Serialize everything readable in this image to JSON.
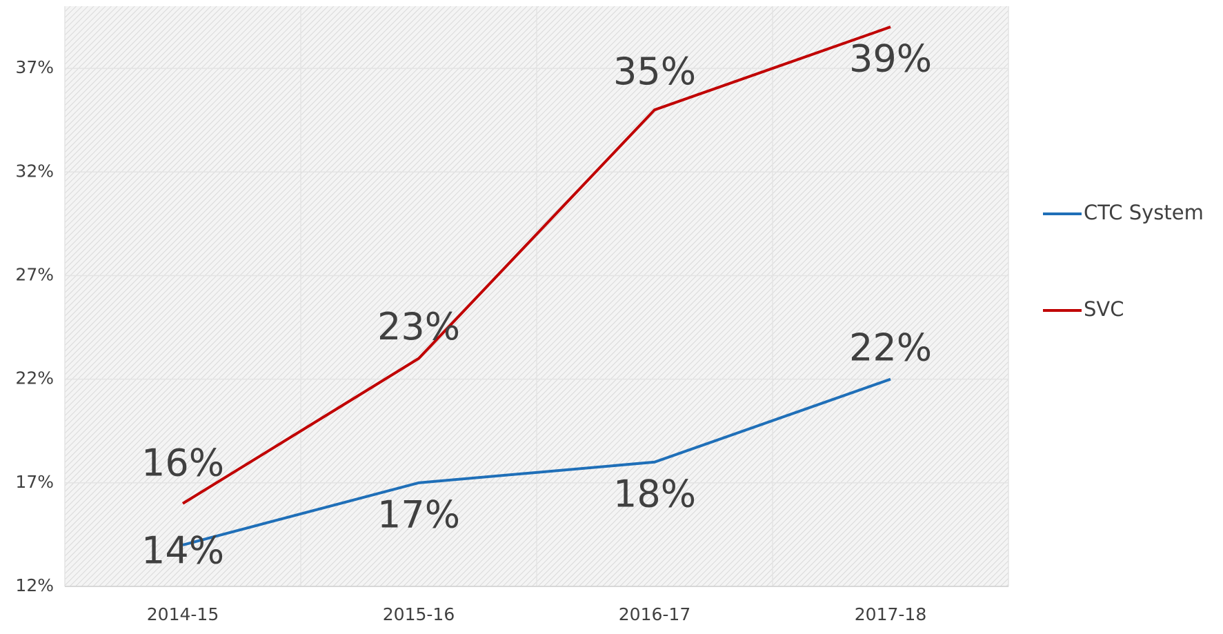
{
  "chart_data": {
    "type": "line",
    "categories": [
      "2014-15",
      "2015-16",
      "2016-17",
      "2017-18"
    ],
    "series": [
      {
        "name": "CTC System",
        "color": "#1f6fb8",
        "values": [
          14,
          17,
          18,
          22
        ],
        "value_labels": [
          "14%",
          "17%",
          "18%",
          "22%"
        ]
      },
      {
        "name": "SVC",
        "color": "#c00000",
        "values": [
          16,
          23,
          35,
          39
        ],
        "value_labels": [
          "16%",
          "23%",
          "35%",
          "39%"
        ]
      }
    ],
    "ylim": [
      12,
      40
    ],
    "yticks": [
      {
        "value": 12,
        "label": "12%"
      },
      {
        "value": 17,
        "label": "17%"
      },
      {
        "value": 22,
        "label": "22%"
      },
      {
        "value": 27,
        "label": "27%"
      },
      {
        "value": 32,
        "label": "32%"
      },
      {
        "value": 37,
        "label": "37%"
      }
    ],
    "grid": true,
    "legend": "right"
  }
}
